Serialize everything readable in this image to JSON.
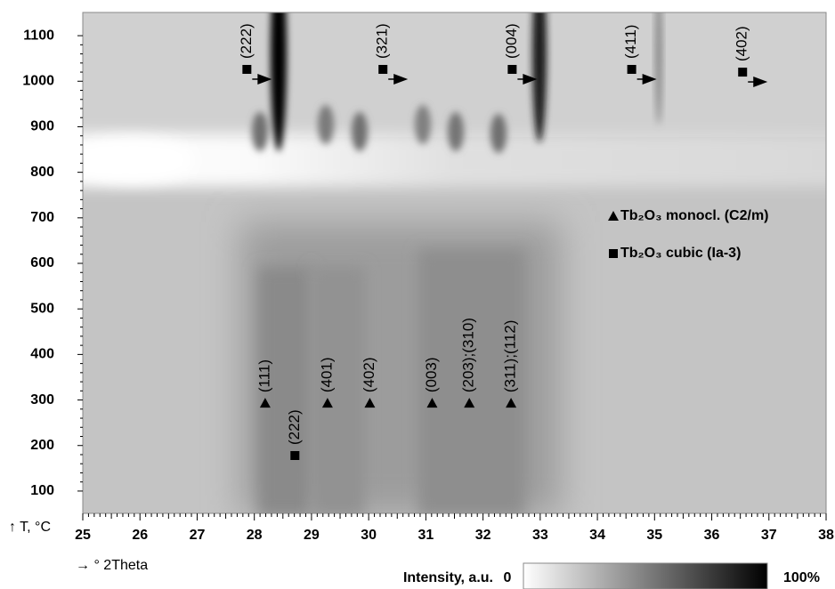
{
  "chart_data": {
    "type": "heatmap",
    "x_label": "→ ° 2Theta",
    "y_label": "↑ T, °C",
    "xlim": [
      25,
      38
    ],
    "xticks": [
      25,
      26,
      27,
      28,
      29,
      30,
      31,
      32,
      33,
      34,
      35,
      36,
      37,
      38
    ],
    "ylim": [
      51,
      1151
    ],
    "yticks": [
      100,
      200,
      300,
      400,
      500,
      600,
      700,
      800,
      900,
      1000,
      1100
    ],
    "colorbar": {
      "label": "Intensity, a.u.",
      "ticks": [
        0,
        {
          "value": 100,
          "label": "100%"
        }
      ]
    },
    "phases": [
      {
        "name": "Tb₂O₃ monocl. (C2/m)",
        "marker": "triangle",
        "peaks": [
          {
            "label": "(111)",
            "x": 28.19,
            "y": 293
          },
          {
            "label": "(401)",
            "x": 29.28,
            "y": 293
          },
          {
            "label": "(402)",
            "x": 30.02,
            "y": 293
          },
          {
            "label": "(003)",
            "x": 31.11,
            "y": 293
          },
          {
            "label": "(203);(310)",
            "x": 31.76,
            "y": 293
          },
          {
            "label": "(311);(112)",
            "x": 32.49,
            "y": 293
          }
        ]
      },
      {
        "name": "Tb₂O₃ cubic (Ia-3)",
        "marker": "square",
        "peaks": [
          {
            "label": "(222)",
            "x": 27.87,
            "y": 1026,
            "arrow": true
          },
          {
            "label": "(321)",
            "x": 30.25,
            "y": 1026,
            "arrow": true
          },
          {
            "label": "(004)",
            "x": 32.51,
            "y": 1026,
            "arrow": true
          },
          {
            "label": "(411)",
            "x": 34.6,
            "y": 1026,
            "arrow": true
          },
          {
            "label": "(402)",
            "x": 36.54,
            "y": 1020,
            "arrow": true
          },
          {
            "label": "(222)",
            "x": 28.71,
            "y": 178
          }
        ]
      }
    ]
  }
}
